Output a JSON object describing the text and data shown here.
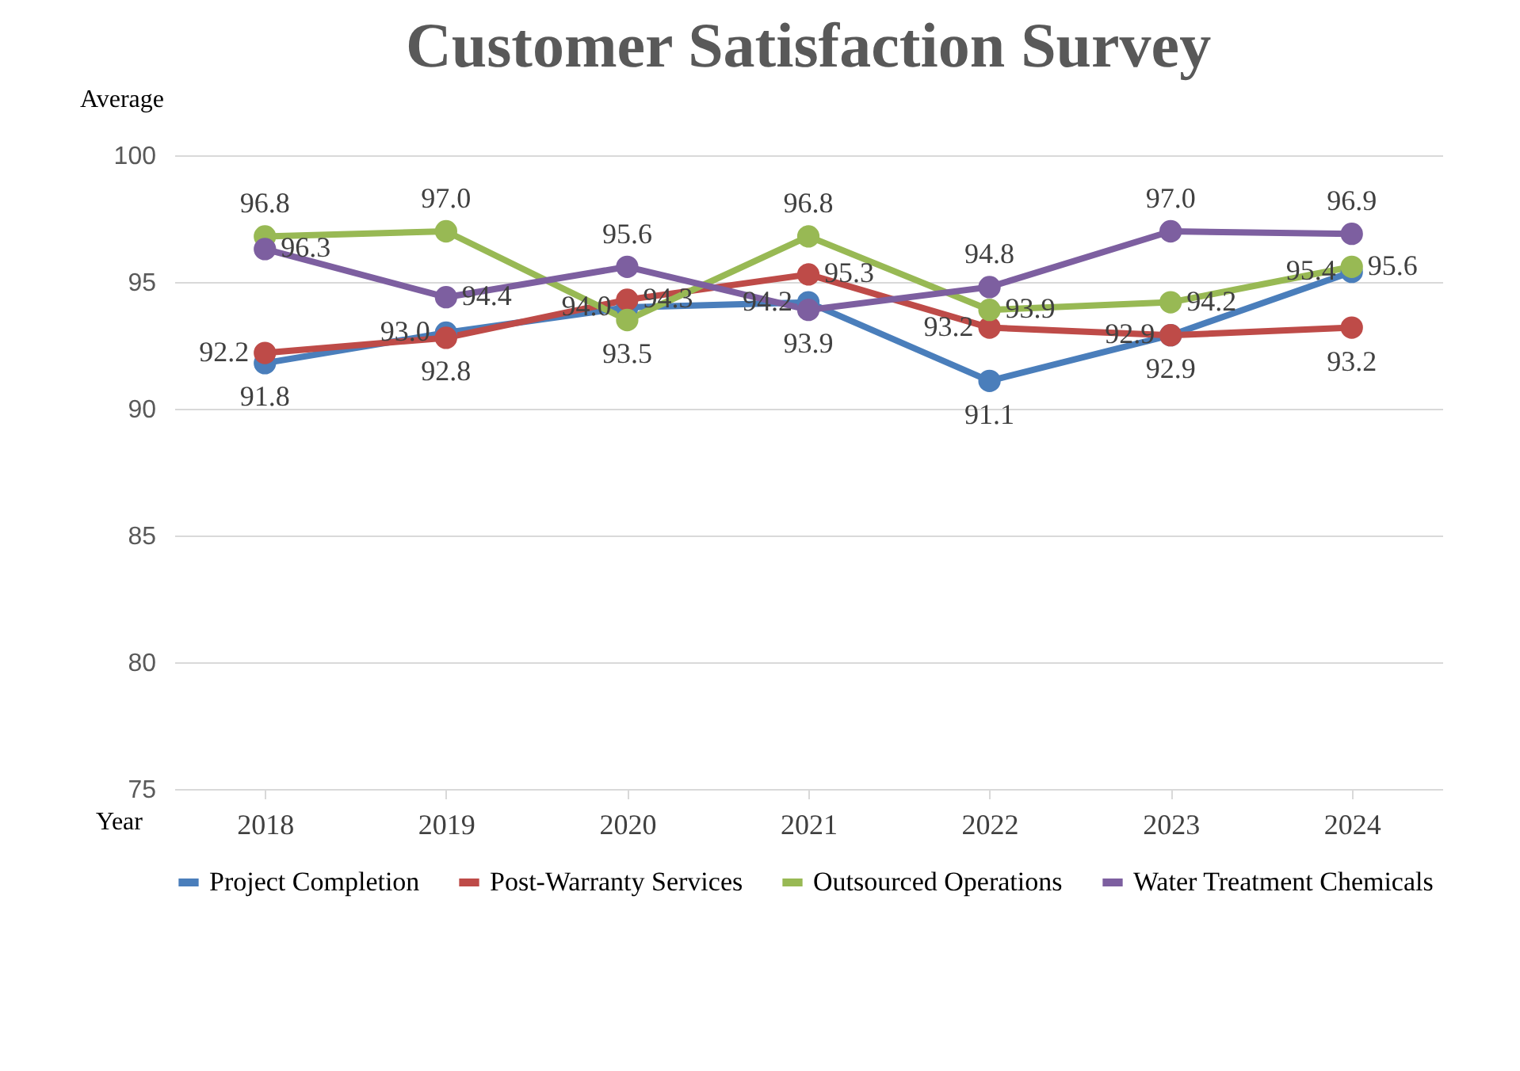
{
  "chart_data": {
    "type": "line",
    "title": "Customer Satisfaction Survey",
    "xlabel": "Year",
    "ylabel": "Average",
    "categories": [
      "2018",
      "2019",
      "2020",
      "2021",
      "2022",
      "2023",
      "2024"
    ],
    "series": [
      {
        "name": "Project Completion",
        "color": "#4a7ebb",
        "values": [
          91.8,
          93.0,
          94.0,
          94.2,
          91.1,
          92.9,
          95.4
        ],
        "value_labels": [
          "91.8",
          "93.0",
          "94.0",
          "94.2",
          "91.1",
          "92.9",
          "95.4"
        ]
      },
      {
        "name": "Post-Warranty Services",
        "color": "#be4b48",
        "values": [
          92.2,
          92.8,
          94.3,
          95.3,
          93.2,
          92.9,
          93.2
        ],
        "value_labels": [
          "92.2",
          "92.8",
          "94.3",
          "95.3",
          "93.2",
          "92.9",
          "93.2"
        ]
      },
      {
        "name": "Outsourced Operations",
        "color": "#98b954",
        "values": [
          96.8,
          97.0,
          93.5,
          96.8,
          93.9,
          94.2,
          95.6
        ],
        "value_labels": [
          "96.8",
          "97.0",
          "93.5",
          "96.8",
          "93.9",
          "94.2",
          "95.6"
        ]
      },
      {
        "name": "Water Treatment Chemicals",
        "color": "#7d5fa0",
        "values": [
          96.3,
          94.4,
          95.6,
          93.9,
          94.8,
          97.0,
          96.9
        ],
        "value_labels": [
          "96.3",
          "94.4",
          "95.6",
          "93.9",
          "94.8",
          "97.0",
          "96.9"
        ]
      }
    ],
    "ylim": [
      75,
      100
    ],
    "yticks": [
      75,
      80,
      85,
      90,
      95,
      100
    ],
    "grid": "y",
    "legend": "bottom",
    "marker": "circle",
    "line_style": "solid"
  }
}
